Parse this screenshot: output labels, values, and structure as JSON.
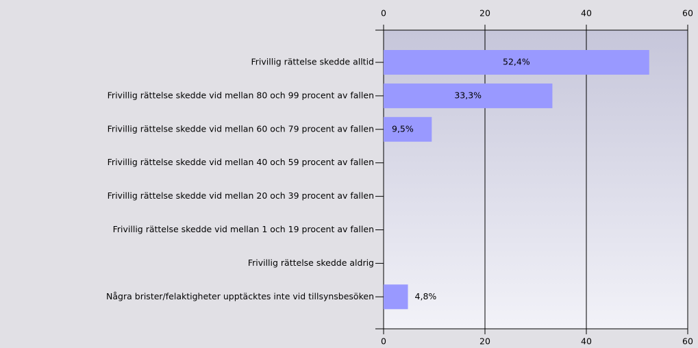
{
  "chart_data": {
    "type": "bar",
    "orientation": "horizontal",
    "categories": [
      "Frivillig rättelse skedde alltid",
      "Frivillig rättelse skedde vid mellan 80 och 99 procent av fallen",
      "Frivillig rättelse skedde vid mellan 60 och 79 procent av fallen",
      "Frivillig rättelse skedde vid mellan 40 och 59 procent av fallen",
      "Frivillig rättelse skedde vid mellan 20 och 39 procent av fallen",
      "Frivillig rättelse skedde vid mellan 1 och 19 procent av fallen",
      "Frivillig rättelse skedde aldrig",
      "Några brister/felaktigheter upptäcktes inte vid tillsynsbesöken"
    ],
    "values": [
      52.4,
      33.3,
      9.5,
      0,
      0,
      0,
      0,
      4.8
    ],
    "value_labels": [
      "52,4%",
      "33,3%",
      "9,5%",
      null,
      null,
      null,
      null,
      "4,8%"
    ],
    "color": "#9999ff",
    "xlim": [
      0,
      60
    ],
    "xticks": [
      0,
      20,
      40,
      60
    ],
    "grid": true
  }
}
